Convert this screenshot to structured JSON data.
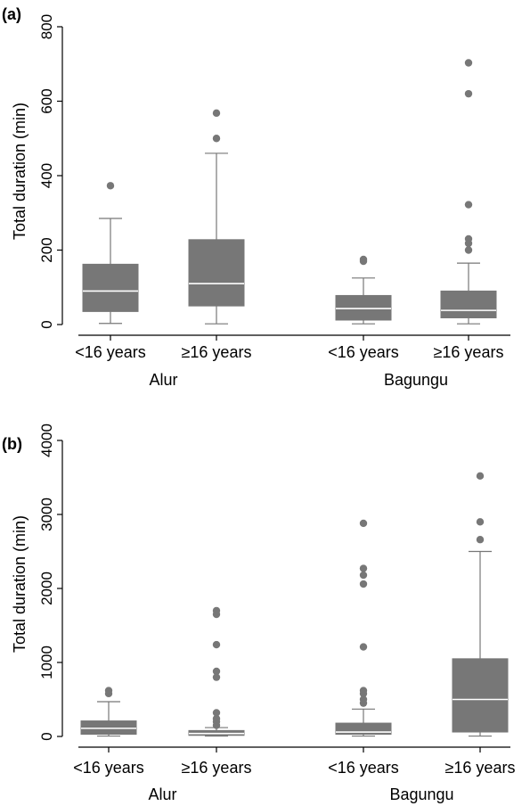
{
  "chart_data": [
    {
      "type": "boxplot",
      "panel_label": "(a)",
      "ylabel": "Total duration (min)",
      "ylim": [
        0,
        800
      ],
      "yticks": [
        0,
        200,
        400,
        600,
        800
      ],
      "groups": [
        "Alur",
        "Bagungu"
      ],
      "box_color": "#777777",
      "median_color": "#ffffff",
      "boxes": [
        {
          "group": "Alur",
          "category": "<16 years",
          "whisker_low": 3,
          "q1": 35,
          "median": 90,
          "q3": 162,
          "whisker_high": 285,
          "outliers": [
            373
          ]
        },
        {
          "group": "Alur",
          "category": "≥16 years",
          "whisker_low": 2,
          "q1": 50,
          "median": 110,
          "q3": 228,
          "whisker_high": 460,
          "outliers": [
            500,
            568
          ]
        },
        {
          "group": "Bagungu",
          "category": "<16 years",
          "whisker_low": 2,
          "q1": 12,
          "median": 43,
          "q3": 78,
          "whisker_high": 125,
          "outliers": [
            170,
            175
          ]
        },
        {
          "group": "Bagungu",
          "category": "≥16 years",
          "whisker_low": 2,
          "q1": 18,
          "median": 38,
          "q3": 90,
          "whisker_high": 165,
          "outliers": [
            200,
            218,
            230,
            322,
            620,
            703
          ]
        }
      ]
    },
    {
      "type": "boxplot",
      "panel_label": "(b)",
      "ylabel": "Total duration (min)",
      "ylim": [
        0,
        4000
      ],
      "yticks": [
        0,
        1000,
        2000,
        3000,
        4000
      ],
      "groups": [
        "Alur",
        "Bagungu"
      ],
      "box_color": "#777777",
      "median_color": "#ffffff",
      "boxes": [
        {
          "group": "Alur",
          "category": "<16 years",
          "whisker_low": 5,
          "q1": 30,
          "median": 110,
          "q3": 210,
          "whisker_high": 470,
          "outliers": [
            580,
            620
          ]
        },
        {
          "group": "Alur",
          "category": "≥16 years",
          "whisker_low": 5,
          "q1": 15,
          "median": 40,
          "q3": 80,
          "whisker_high": 120,
          "outliers": [
            150,
            200,
            240,
            320,
            800,
            880,
            1240,
            1650,
            1700
          ]
        },
        {
          "group": "Bagungu",
          "category": "<16 years",
          "whisker_low": 5,
          "q1": 30,
          "median": 60,
          "q3": 180,
          "whisker_high": 370,
          "outliers": [
            450,
            500,
            580,
            620,
            1210,
            2060,
            2180,
            2270,
            2880
          ]
        },
        {
          "group": "Bagungu",
          "category": "≥16 years",
          "whisker_low": 5,
          "q1": 60,
          "median": 500,
          "q3": 1050,
          "whisker_high": 2500,
          "outliers": [
            2660,
            2900,
            3520
          ]
        }
      ]
    }
  ]
}
